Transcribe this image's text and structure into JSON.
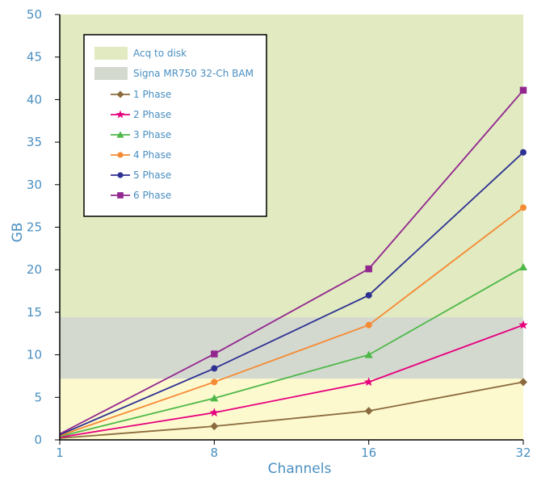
{
  "chart_data": {
    "type": "line",
    "xlabel": "Channels",
    "ylabel": "GB",
    "x_ticks": [
      "1",
      "8",
      "16",
      "32"
    ],
    "x": [
      1,
      8,
      16,
      32
    ],
    "ylim": [
      0,
      50
    ],
    "y_ticks": [
      0,
      5,
      10,
      15,
      20,
      25,
      30,
      35,
      40,
      45,
      50
    ],
    "bands": [
      {
        "name": "Acq to disk",
        "y_range": [
          7.2,
          50
        ],
        "color": "#e1eac0"
      },
      {
        "name": "Signa MR750 32-Ch BAM",
        "y_range": [
          7.2,
          14.4
        ],
        "color": "#d4d9d0"
      }
    ],
    "base_fill": "#fdf9cf",
    "series": [
      {
        "name": "1 Phase",
        "values": [
          0.2,
          1.6,
          3.4,
          6.8
        ],
        "color": "#8b6b3d",
        "marker": "diamond"
      },
      {
        "name": "2 Phase",
        "values": [
          0.3,
          3.2,
          6.8,
          13.5
        ],
        "color": "#e6007e",
        "marker": "star"
      },
      {
        "name": "3 Phase",
        "values": [
          0.4,
          4.9,
          10.0,
          20.3
        ],
        "color": "#4db848",
        "marker": "triangle"
      },
      {
        "name": "4 Phase",
        "values": [
          0.5,
          6.8,
          13.5,
          27.3
        ],
        "color": "#f58a34",
        "marker": "circle"
      },
      {
        "name": "5 Phase",
        "values": [
          0.6,
          8.4,
          17.0,
          33.8
        ],
        "color": "#2e3192",
        "marker": "circle"
      },
      {
        "name": "6 Phase",
        "values": [
          0.7,
          10.1,
          20.1,
          41.1
        ],
        "color": "#92278f",
        "marker": "square"
      }
    ],
    "legend_position": "top-left",
    "grid": false
  }
}
